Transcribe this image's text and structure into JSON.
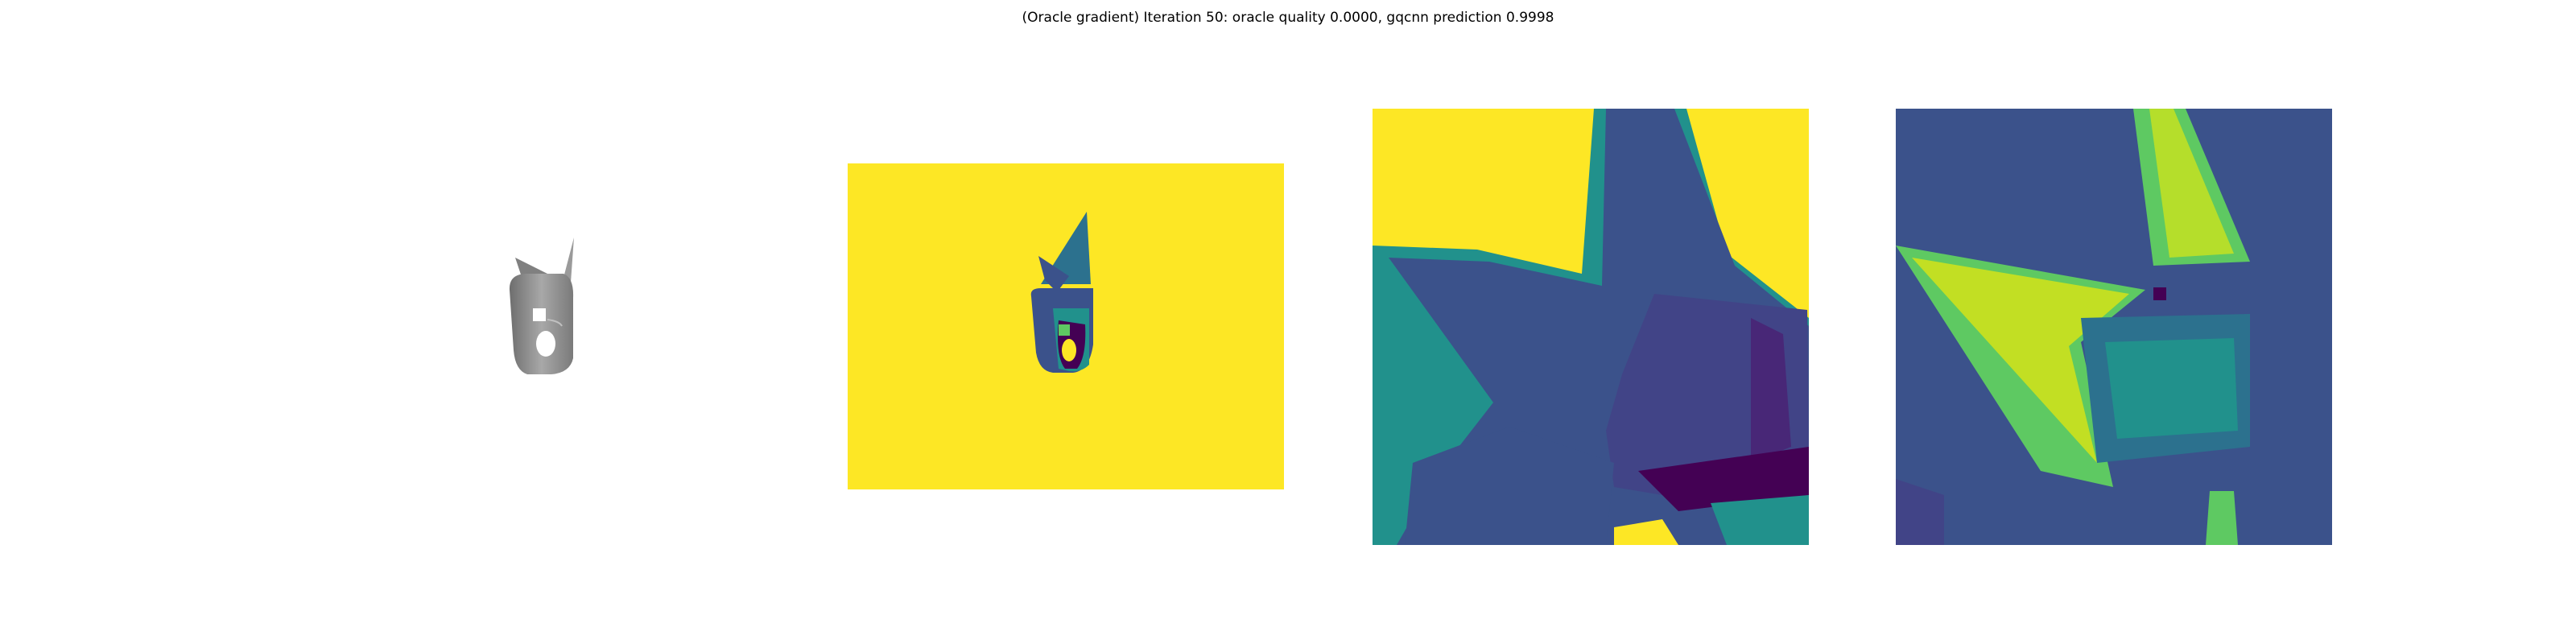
{
  "figure": {
    "title": "(Oracle gradient) Iteration 50: oracle quality 0.0000, gqcnn prediction 0.9998"
  },
  "panels": [
    {
      "name": "object-render"
    },
    {
      "name": "depth-image"
    },
    {
      "name": "cropped-depth"
    },
    {
      "name": "gradient-map"
    }
  ],
  "colors": {
    "viridis_yellow": "#fde725",
    "viridis_purple": "#440154",
    "viridis_blue": "#3b528b",
    "viridis_teal": "#21918c",
    "viridis_green": "#5ec962",
    "object_gray": "#8a8a8a"
  }
}
